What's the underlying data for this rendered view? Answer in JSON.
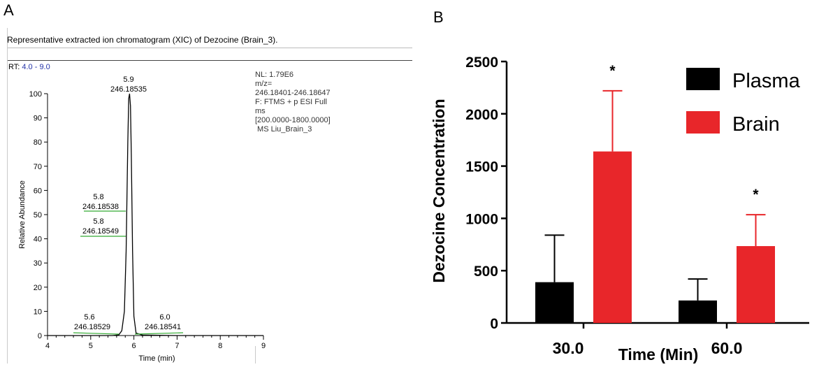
{
  "panel_a": {
    "letter": "A",
    "caption": "Representative extracted ion chromatogram (XIC) of Dezocine (Brain_3).",
    "rt_label": "RT:",
    "rt_range": "4.0 - 9.0",
    "info_lines": [
      "NL: 1.79E6",
      "m/z=",
      "246.18401-246.18647",
      "F: FTMS + p ESI Full",
      "ms",
      "[200.0000-1800.0000]",
      " MS Liu_Brain_3"
    ],
    "xlabel": "Time (min)",
    "ylabel": "Relative Abundance",
    "x_ticks": [
      "4",
      "5",
      "6",
      "7",
      "8",
      "9"
    ],
    "y_ticks": [
      "0",
      "10",
      "20",
      "30",
      "40",
      "50",
      "60",
      "70",
      "80",
      "90",
      "100"
    ],
    "peak_labels": {
      "top_rt": "5.9",
      "top_mz": "246.18535",
      "p1_rt": "5.8",
      "p1_mz": "246.18538",
      "p2_rt": "5.8",
      "p2_mz": "246.18549",
      "p3_rt": "5.6",
      "p3_mz": "246.18529",
      "p4_rt": "6.0",
      "p4_mz": "246.18541"
    },
    "colors": {
      "trace": "#000000",
      "label_line": "#33aa33",
      "rt_range": "#2433a8"
    }
  },
  "chart_data": [
    {
      "type": "line",
      "xlabel": "Time (min)",
      "ylabel": "Relative Abundance",
      "xlim": [
        4,
        9
      ],
      "ylim": [
        0,
        100
      ],
      "x": [
        4.0,
        5.0,
        5.5,
        5.65,
        5.72,
        5.78,
        5.82,
        5.86,
        5.88,
        5.9,
        5.92,
        5.94,
        5.97,
        6.0,
        6.05,
        6.2,
        7.0,
        9.0
      ],
      "y": [
        0,
        0,
        0,
        0.3,
        2,
        10,
        35,
        80,
        98,
        100,
        95,
        75,
        35,
        8,
        1,
        0.2,
        0,
        0
      ]
    },
    {
      "type": "bar",
      "letter": "B",
      "categories": [
        "30.0",
        "60.0"
      ],
      "series": [
        {
          "name": "Plasma",
          "values": [
            390,
            215
          ],
          "error": [
            450,
            205
          ],
          "color": "#000000"
        },
        {
          "name": "Brain",
          "values": [
            1640,
            735
          ],
          "error": [
            580,
            300
          ],
          "color": "#e8262a"
        }
      ],
      "significance": [
        "*",
        "*"
      ],
      "xlabel": "Time (Min)",
      "ylabel": "Dezocine Concentration",
      "ylim": [
        0,
        2500
      ],
      "y_ticks": [
        "0",
        "500",
        "1000",
        "1500",
        "2000",
        "2500"
      ],
      "legend_position": "top-right"
    }
  ]
}
